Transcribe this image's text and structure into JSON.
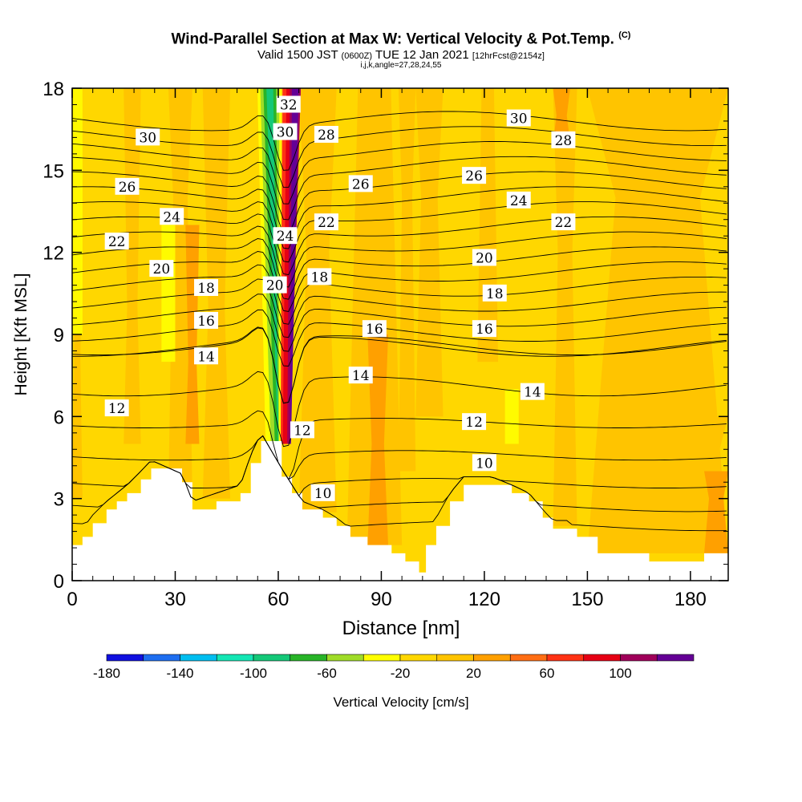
{
  "header": {
    "title_main": "Wind-Parallel Section at Max W: Vertical Velocity & Pot.Temp.",
    "title_c": "(C)",
    "valid_prefix": "Valid 1500 JST",
    "valid_utc": "(0600Z)",
    "valid_date": "TUE 12 Jan 2021",
    "forecast": "[12hrFcst@2154z]",
    "ijk": "i,j,k,angle=27,28,24,55"
  },
  "chart_data": {
    "type": "heatmap",
    "xlabel": "Distance [nm]",
    "ylabel": "Height [Kft MSL]",
    "xlim": [
      0,
      191
    ],
    "ylim": [
      0,
      18
    ],
    "xticks": [
      "0",
      "30",
      "60",
      "90",
      "120",
      "150",
      "180"
    ],
    "xtick_values": [
      0,
      30,
      60,
      90,
      120,
      150,
      180
    ],
    "yticks": [
      "0",
      "3",
      "6",
      "9",
      "12",
      "15",
      "18"
    ],
    "ytick_values": [
      0,
      3,
      6,
      9,
      12,
      15,
      18
    ],
    "colorbar": {
      "label": "Vertical Velocity [cm/s]",
      "tick_labels": [
        "-180",
        "-140",
        "-100",
        "-60",
        "-20",
        "20",
        "60",
        "100"
      ],
      "tick_values": [
        -180,
        -140,
        -100,
        -60,
        -20,
        20,
        60,
        100
      ],
      "bins": [
        {
          "from": -180,
          "to": -160,
          "color": "#1010e0"
        },
        {
          "from": -160,
          "to": -140,
          "color": "#1e6ef0"
        },
        {
          "from": -140,
          "to": -120,
          "color": "#00bef0"
        },
        {
          "from": -120,
          "to": -100,
          "color": "#14e6b4"
        },
        {
          "from": -100,
          "to": -80,
          "color": "#14c878"
        },
        {
          "from": -80,
          "to": -60,
          "color": "#28b428"
        },
        {
          "from": -60,
          "to": -40,
          "color": "#a0dc28"
        },
        {
          "from": -40,
          "to": -20,
          "color": "#ffff00"
        },
        {
          "from": -20,
          "to": 0,
          "color": "#ffd700"
        },
        {
          "from": 0,
          "to": 20,
          "color": "#ffc400"
        },
        {
          "from": 20,
          "to": 40,
          "color": "#ffa000"
        },
        {
          "from": 40,
          "to": 60,
          "color": "#ff6e14"
        },
        {
          "from": 60,
          "to": 80,
          "color": "#ff3214"
        },
        {
          "from": 80,
          "to": 100,
          "color": "#e60014"
        },
        {
          "from": 100,
          "to": 120,
          "color": "#a0005a"
        },
        {
          "from": 120,
          "to": 140,
          "color": "#640096"
        }
      ]
    },
    "terrain": [
      [
        0,
        1.3
      ],
      [
        3,
        1.6
      ],
      [
        6,
        2.1
      ],
      [
        10,
        2.6
      ],
      [
        13,
        2.9
      ],
      [
        16,
        3.2
      ],
      [
        20,
        3.7
      ],
      [
        23,
        4.1
      ],
      [
        32,
        3.6
      ],
      [
        35,
        2.6
      ],
      [
        42,
        2.9
      ],
      [
        49,
        3.2
      ],
      [
        52,
        4.3
      ],
      [
        55,
        5.1
      ],
      [
        61,
        3.8
      ],
      [
        64,
        3.2
      ],
      [
        67,
        2.6
      ],
      [
        73,
        2.3
      ],
      [
        77,
        2.0
      ],
      [
        81,
        1.6
      ],
      [
        86,
        1.3
      ],
      [
        93,
        1.0
      ],
      [
        97,
        0.7
      ],
      [
        101,
        0.3
      ],
      [
        103,
        1.3
      ],
      [
        106,
        2.0
      ],
      [
        110,
        2.9
      ],
      [
        114,
        3.5
      ],
      [
        122,
        3.5
      ],
      [
        128,
        3.2
      ],
      [
        133,
        2.9
      ],
      [
        137,
        2.3
      ],
      [
        140,
        1.9
      ],
      [
        144,
        1.9
      ],
      [
        147,
        1.6
      ],
      [
        153,
        1.0
      ],
      [
        165,
        1.0
      ],
      [
        168,
        0.7
      ],
      [
        180,
        0.7
      ],
      [
        184,
        1.0
      ],
      [
        191,
        1.0
      ]
    ],
    "updraft_band": [
      {
        "color": "#ff6e14",
        "x_base": 60.5,
        "x_top": 62.5,
        "half_w_base": 1.5,
        "half_w_top": 3.2
      },
      {
        "color": "#ff3214",
        "x_base": 61.5,
        "x_top": 64.0,
        "half_w_base": 1.1,
        "half_w_top": 2.6
      },
      {
        "color": "#e60014",
        "x_base": 62.0,
        "x_top": 64.5,
        "half_w_base": 0.7,
        "half_w_top": 2.1
      },
      {
        "color": "#a0005a",
        "x_base": 63.0,
        "x_top": 65.0,
        "half_w_base": 0.4,
        "half_w_top": 1.6
      },
      {
        "color": "#640096",
        "x_base": 63.5,
        "x_top": 65.0,
        "half_w_base": 0.2,
        "half_w_top": 1.0
      }
    ],
    "downdraft_band": [
      {
        "color": "#ffff00",
        "x_base": 58.5,
        "x_top": 57.5,
        "half_w_base": 2.2,
        "half_w_top": 3.6
      },
      {
        "color": "#a0dc28",
        "x_base": 59.0,
        "x_top": 57.5,
        "half_w_base": 1.2,
        "half_w_top": 2.8
      },
      {
        "color": "#28b428",
        "x_base": 59.5,
        "x_top": 57.5,
        "half_w_base": 0.5,
        "half_w_top": 1.9
      },
      {
        "color": "#14c878",
        "x_base": 60.0,
        "x_top": 57.5,
        "half_w_base": 0.1,
        "half_w_top": 1.0
      }
    ],
    "isentrope_levels": [
      10,
      11,
      12,
      13,
      14,
      15,
      16,
      17,
      18,
      19,
      20,
      21,
      22,
      23,
      24,
      25,
      26,
      27,
      28,
      29,
      30,
      31,
      32
    ],
    "isentrope_labels": [
      {
        "text": "30",
        "x": 22,
        "y": 16.2
      },
      {
        "text": "26",
        "x": 16,
        "y": 14.4
      },
      {
        "text": "24",
        "x": 29,
        "y": 13.3
      },
      {
        "text": "22",
        "x": 13,
        "y": 12.4
      },
      {
        "text": "20",
        "x": 26,
        "y": 11.4
      },
      {
        "text": "18",
        "x": 39,
        "y": 10.7
      },
      {
        "text": "16",
        "x": 39,
        "y": 9.5
      },
      {
        "text": "14",
        "x": 39,
        "y": 8.2
      },
      {
        "text": "12",
        "x": 13,
        "y": 6.3
      },
      {
        "text": "32",
        "x": 63,
        "y": 17.4
      },
      {
        "text": "30",
        "x": 62,
        "y": 16.4
      },
      {
        "text": "28",
        "x": 74,
        "y": 16.3
      },
      {
        "text": "24",
        "x": 62,
        "y": 12.6
      },
      {
        "text": "22",
        "x": 74,
        "y": 13.1
      },
      {
        "text": "20",
        "x": 59,
        "y": 10.8
      },
      {
        "text": "18",
        "x": 72,
        "y": 11.1
      },
      {
        "text": "12",
        "x": 67,
        "y": 5.5
      },
      {
        "text": "10",
        "x": 73,
        "y": 3.2
      },
      {
        "text": "26",
        "x": 84,
        "y": 14.5
      },
      {
        "text": "16",
        "x": 88,
        "y": 9.2
      },
      {
        "text": "14",
        "x": 84,
        "y": 7.5
      },
      {
        "text": "26",
        "x": 117,
        "y": 14.8
      },
      {
        "text": "20",
        "x": 120,
        "y": 11.8
      },
      {
        "text": "18",
        "x": 123,
        "y": 10.5
      },
      {
        "text": "16",
        "x": 120,
        "y": 9.2
      },
      {
        "text": "12",
        "x": 117,
        "y": 5.8
      },
      {
        "text": "10",
        "x": 120,
        "y": 4.3
      },
      {
        "text": "30",
        "x": 130,
        "y": 16.9
      },
      {
        "text": "24",
        "x": 130,
        "y": 13.9
      },
      {
        "text": "14",
        "x": 134,
        "y": 6.9
      },
      {
        "text": "28",
        "x": 143,
        "y": 16.1
      },
      {
        "text": "22",
        "x": 143,
        "y": 13.1
      }
    ]
  }
}
